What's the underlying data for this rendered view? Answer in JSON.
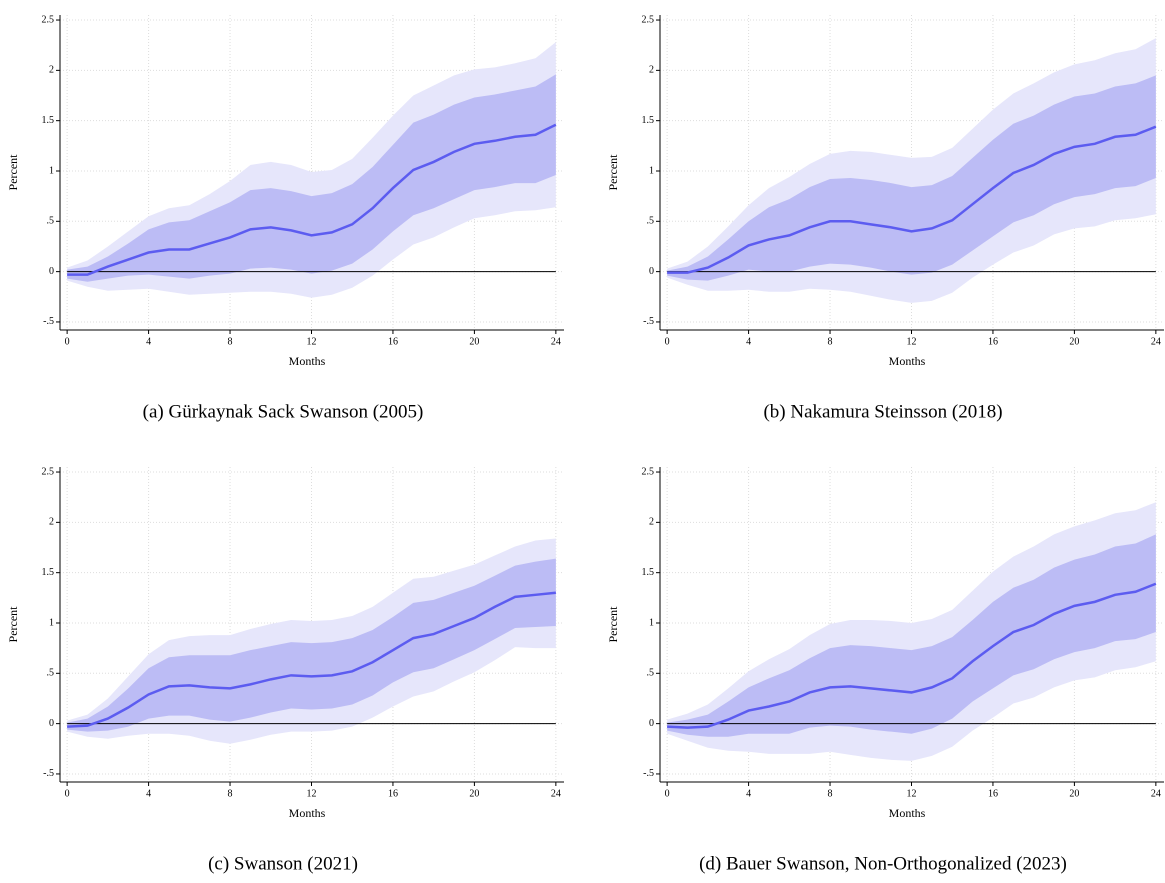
{
  "chart_data": [
    {
      "type": "line",
      "title": "(a) Gürkaynak Sack Swanson (2005)",
      "xlabel": "Months",
      "ylabel": "Percent",
      "x": [
        0,
        1,
        2,
        3,
        4,
        5,
        6,
        7,
        8,
        9,
        10,
        11,
        12,
        13,
        14,
        15,
        16,
        17,
        18,
        19,
        20,
        21,
        22,
        23,
        24
      ],
      "xlim": [
        -0.35,
        24.4
      ],
      "xticks": [
        0,
        4,
        8,
        12,
        16,
        20,
        24
      ],
      "ylim": [
        -0.58,
        2.55
      ],
      "yticks": [
        {
          "value": -0.5,
          "label": "-.5"
        },
        0,
        {
          "value": 0.5,
          "label": ".5"
        },
        1,
        1.5,
        2,
        2.5
      ],
      "grid": true,
      "hline": 0,
      "bands": [
        {
          "color": "#e6e6fb",
          "upper": [
            0.04,
            0.11,
            0.25,
            0.4,
            0.55,
            0.63,
            0.66,
            0.77,
            0.9,
            1.06,
            1.09,
            1.06,
            0.99,
            1.01,
            1.12,
            1.33,
            1.55,
            1.75,
            1.85,
            1.95,
            2.01,
            2.03,
            2.07,
            2.12,
            2.28
          ],
          "lower": [
            -0.09,
            -0.15,
            -0.19,
            -0.18,
            -0.17,
            -0.2,
            -0.23,
            -0.22,
            -0.21,
            -0.2,
            -0.2,
            -0.22,
            -0.26,
            -0.23,
            -0.16,
            -0.04,
            0.12,
            0.27,
            0.34,
            0.44,
            0.53,
            0.56,
            0.6,
            0.61,
            0.64
          ]
        },
        {
          "color": "#bcbcf5",
          "upper": [
            0.02,
            0.05,
            0.15,
            0.28,
            0.42,
            0.49,
            0.51,
            0.6,
            0.69,
            0.81,
            0.83,
            0.8,
            0.75,
            0.78,
            0.87,
            1.04,
            1.26,
            1.48,
            1.56,
            1.66,
            1.73,
            1.76,
            1.8,
            1.84,
            1.96
          ],
          "lower": [
            -0.07,
            -0.1,
            -0.07,
            -0.04,
            -0.03,
            -0.05,
            -0.07,
            -0.04,
            -0.02,
            0.03,
            0.04,
            0.02,
            -0.02,
            0.01,
            0.08,
            0.22,
            0.4,
            0.56,
            0.63,
            0.72,
            0.81,
            0.84,
            0.88,
            0.88,
            0.96
          ]
        }
      ],
      "series": [
        {
          "color": "#5c5cf0",
          "values": [
            -0.03,
            -0.03,
            0.05,
            0.12,
            0.19,
            0.22,
            0.22,
            0.28,
            0.34,
            0.42,
            0.44,
            0.41,
            0.36,
            0.39,
            0.47,
            0.63,
            0.83,
            1.01,
            1.09,
            1.19,
            1.27,
            1.3,
            1.34,
            1.36,
            1.46
          ]
        }
      ]
    },
    {
      "type": "line",
      "title": "(b) Nakamura Steinsson (2018)",
      "xlabel": "Months",
      "ylabel": "Percent",
      "x": [
        0,
        1,
        2,
        3,
        4,
        5,
        6,
        7,
        8,
        9,
        10,
        11,
        12,
        13,
        14,
        15,
        16,
        17,
        18,
        19,
        20,
        21,
        22,
        23,
        24
      ],
      "xlim": [
        -0.35,
        24.4
      ],
      "xticks": [
        0,
        4,
        8,
        12,
        16,
        20,
        24
      ],
      "ylim": [
        -0.58,
        2.55
      ],
      "yticks": [
        {
          "value": -0.5,
          "label": "-.5"
        },
        0,
        {
          "value": 0.5,
          "label": ".5"
        },
        1,
        1.5,
        2,
        2.5
      ],
      "grid": true,
      "hline": 0,
      "bands": [
        {
          "color": "#e6e6fb",
          "upper": [
            0.03,
            0.1,
            0.25,
            0.45,
            0.66,
            0.83,
            0.94,
            1.07,
            1.17,
            1.2,
            1.19,
            1.16,
            1.13,
            1.14,
            1.23,
            1.42,
            1.61,
            1.77,
            1.87,
            1.98,
            2.06,
            2.1,
            2.17,
            2.21,
            2.32
          ],
          "lower": [
            -0.06,
            -0.13,
            -0.19,
            -0.19,
            -0.18,
            -0.2,
            -0.2,
            -0.17,
            -0.18,
            -0.2,
            -0.24,
            -0.28,
            -0.31,
            -0.29,
            -0.21,
            -0.06,
            0.07,
            0.19,
            0.26,
            0.37,
            0.43,
            0.45,
            0.51,
            0.53,
            0.57
          ]
        },
        {
          "color": "#bcbcf5",
          "upper": [
            0.01,
            0.05,
            0.15,
            0.32,
            0.5,
            0.64,
            0.72,
            0.84,
            0.92,
            0.93,
            0.91,
            0.88,
            0.84,
            0.86,
            0.95,
            1.13,
            1.31,
            1.47,
            1.55,
            1.66,
            1.74,
            1.77,
            1.84,
            1.87,
            1.95
          ],
          "lower": [
            -0.04,
            -0.08,
            -0.09,
            -0.04,
            0.02,
            0.0,
            0.0,
            0.05,
            0.08,
            0.07,
            0.04,
            0.0,
            -0.03,
            -0.01,
            0.07,
            0.21,
            0.35,
            0.49,
            0.56,
            0.67,
            0.74,
            0.77,
            0.83,
            0.85,
            0.93
          ]
        }
      ],
      "series": [
        {
          "color": "#5c5cf0",
          "values": [
            -0.01,
            -0.01,
            0.04,
            0.14,
            0.26,
            0.32,
            0.36,
            0.44,
            0.5,
            0.5,
            0.47,
            0.44,
            0.4,
            0.43,
            0.51,
            0.67,
            0.83,
            0.98,
            1.06,
            1.17,
            1.24,
            1.27,
            1.34,
            1.36,
            1.44
          ]
        }
      ]
    },
    {
      "type": "line",
      "title": "(c) Swanson (2021)",
      "xlabel": "Months",
      "ylabel": "Percent",
      "x": [
        0,
        1,
        2,
        3,
        4,
        5,
        6,
        7,
        8,
        9,
        10,
        11,
        12,
        13,
        14,
        15,
        16,
        17,
        18,
        19,
        20,
        21,
        22,
        23,
        24
      ],
      "xlim": [
        -0.35,
        24.4
      ],
      "xticks": [
        0,
        4,
        8,
        12,
        16,
        20,
        24
      ],
      "ylim": [
        -0.58,
        2.55
      ],
      "yticks": [
        {
          "value": -0.5,
          "label": "-.5"
        },
        0,
        {
          "value": 0.5,
          "label": ".5"
        },
        1,
        1.5,
        2,
        2.5
      ],
      "grid": true,
      "hline": 0,
      "bands": [
        {
          "color": "#e6e6fb",
          "upper": [
            0.03,
            0.09,
            0.25,
            0.47,
            0.69,
            0.83,
            0.87,
            0.88,
            0.88,
            0.94,
            0.99,
            1.03,
            1.02,
            1.03,
            1.07,
            1.16,
            1.3,
            1.44,
            1.46,
            1.52,
            1.58,
            1.67,
            1.76,
            1.82,
            1.84
          ],
          "lower": [
            -0.08,
            -0.13,
            -0.15,
            -0.12,
            -0.1,
            -0.1,
            -0.12,
            -0.17,
            -0.2,
            -0.16,
            -0.11,
            -0.08,
            -0.08,
            -0.07,
            -0.03,
            0.06,
            0.17,
            0.27,
            0.32,
            0.42,
            0.51,
            0.63,
            0.76,
            0.75,
            0.75
          ]
        },
        {
          "color": "#bcbcf5",
          "upper": [
            0.01,
            0.05,
            0.17,
            0.35,
            0.55,
            0.66,
            0.68,
            0.68,
            0.68,
            0.73,
            0.77,
            0.81,
            0.8,
            0.81,
            0.85,
            0.93,
            1.06,
            1.2,
            1.23,
            1.3,
            1.37,
            1.47,
            1.57,
            1.61,
            1.64
          ],
          "lower": [
            -0.06,
            -0.08,
            -0.07,
            -0.03,
            0.05,
            0.08,
            0.08,
            0.04,
            0.02,
            0.06,
            0.11,
            0.15,
            0.14,
            0.15,
            0.19,
            0.28,
            0.41,
            0.51,
            0.55,
            0.64,
            0.73,
            0.84,
            0.95,
            0.96,
            0.97
          ]
        }
      ],
      "series": [
        {
          "color": "#5c5cf0",
          "values": [
            -0.03,
            -0.02,
            0.05,
            0.16,
            0.29,
            0.37,
            0.38,
            0.36,
            0.35,
            0.39,
            0.44,
            0.48,
            0.47,
            0.48,
            0.52,
            0.61,
            0.73,
            0.85,
            0.89,
            0.97,
            1.05,
            1.16,
            1.26,
            1.28,
            1.3
          ]
        }
      ]
    },
    {
      "type": "line",
      "title": "(d) Bauer Swanson, Non-Orthogonalized (2023)",
      "xlabel": "Months",
      "ylabel": "Percent",
      "x": [
        0,
        1,
        2,
        3,
        4,
        5,
        6,
        7,
        8,
        9,
        10,
        11,
        12,
        13,
        14,
        15,
        16,
        17,
        18,
        19,
        20,
        21,
        22,
        23,
        24
      ],
      "xlim": [
        -0.35,
        24.4
      ],
      "xticks": [
        0,
        4,
        8,
        12,
        16,
        20,
        24
      ],
      "ylim": [
        -0.58,
        2.55
      ],
      "yticks": [
        {
          "value": -0.5,
          "label": "-.5"
        },
        0,
        {
          "value": 0.5,
          "label": ".5"
        },
        1,
        1.5,
        2,
        2.5
      ],
      "grid": true,
      "hline": 0,
      "bands": [
        {
          "color": "#e6e6fb",
          "upper": [
            0.04,
            0.1,
            0.19,
            0.35,
            0.52,
            0.64,
            0.74,
            0.88,
            0.99,
            1.03,
            1.03,
            1.02,
            1.0,
            1.04,
            1.13,
            1.32,
            1.51,
            1.66,
            1.76,
            1.88,
            1.96,
            2.02,
            2.09,
            2.12,
            2.2
          ],
          "lower": [
            -0.1,
            -0.17,
            -0.24,
            -0.27,
            -0.28,
            -0.3,
            -0.3,
            -0.3,
            -0.28,
            -0.31,
            -0.34,
            -0.36,
            -0.37,
            -0.32,
            -0.23,
            -0.07,
            0.06,
            0.2,
            0.26,
            0.36,
            0.43,
            0.46,
            0.53,
            0.56,
            0.62
          ]
        },
        {
          "color": "#bcbcf5",
          "upper": [
            0.01,
            0.04,
            0.09,
            0.22,
            0.36,
            0.45,
            0.53,
            0.65,
            0.75,
            0.78,
            0.77,
            0.75,
            0.73,
            0.77,
            0.86,
            1.03,
            1.21,
            1.35,
            1.43,
            1.55,
            1.63,
            1.68,
            1.76,
            1.79,
            1.88
          ],
          "lower": [
            -0.07,
            -0.11,
            -0.13,
            -0.13,
            -0.1,
            -0.1,
            -0.1,
            -0.04,
            -0.02,
            -0.03,
            -0.06,
            -0.08,
            -0.1,
            -0.05,
            0.05,
            0.22,
            0.35,
            0.48,
            0.54,
            0.64,
            0.71,
            0.75,
            0.82,
            0.84,
            0.91
          ]
        }
      ],
      "series": [
        {
          "color": "#5c5cf0",
          "values": [
            -0.03,
            -0.04,
            -0.03,
            0.04,
            0.13,
            0.17,
            0.22,
            0.31,
            0.36,
            0.37,
            0.35,
            0.33,
            0.31,
            0.36,
            0.45,
            0.62,
            0.77,
            0.91,
            0.98,
            1.09,
            1.17,
            1.21,
            1.28,
            1.31,
            1.39
          ]
        }
      ]
    }
  ]
}
